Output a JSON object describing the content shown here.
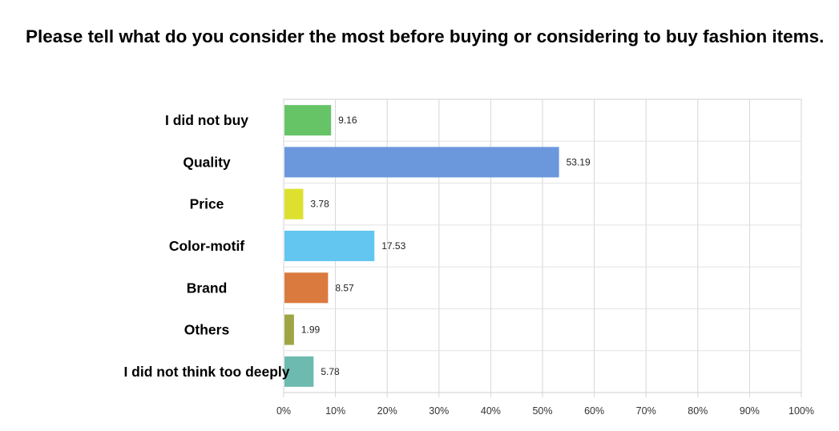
{
  "chart_data": {
    "type": "bar",
    "orientation": "horizontal",
    "title": "Please tell what do you consider the most before buying or considering to buy fashion items.",
    "categories": [
      "I did not buy",
      "Quality",
      "Price",
      "Color-motif",
      "Brand",
      "Others",
      "I did not think too deeply"
    ],
    "values": [
      9.16,
      53.19,
      3.78,
      17.53,
      8.57,
      1.99,
      5.78
    ],
    "value_labels": [
      "9.16",
      "53.19",
      "3.78",
      "17.53",
      "8.57",
      "1.99",
      "5.78"
    ],
    "colors": [
      "#66c366",
      "#6b98dd",
      "#dde02e",
      "#62c6f0",
      "#db7a3e",
      "#9fa545",
      "#6dbbb0"
    ],
    "xlim": [
      0,
      100
    ],
    "xticks": [
      "0%",
      "10%",
      "20%",
      "30%",
      "40%",
      "50%",
      "60%",
      "70%",
      "80%",
      "90%",
      "100%"
    ],
    "grid": true,
    "legend": "none"
  }
}
